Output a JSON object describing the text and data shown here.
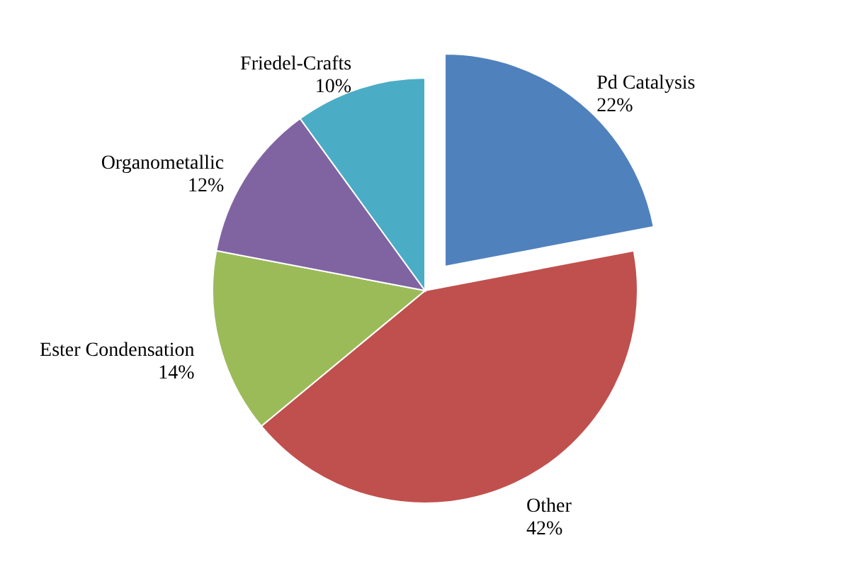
{
  "chart_data": {
    "type": "pie",
    "categories": [
      "Pd Catalysis",
      "Other",
      "Ester Condensation",
      "Organometallic",
      "Friedel-Crafts"
    ],
    "values": [
      22,
      42,
      14,
      12,
      10
    ],
    "colors": [
      "#4f81bd",
      "#c0504d",
      "#9bbb59",
      "#8064a2",
      "#4bacc6"
    ],
    "value_labels": [
      "22%",
      "42%",
      "14%",
      "12%",
      "10%"
    ]
  }
}
